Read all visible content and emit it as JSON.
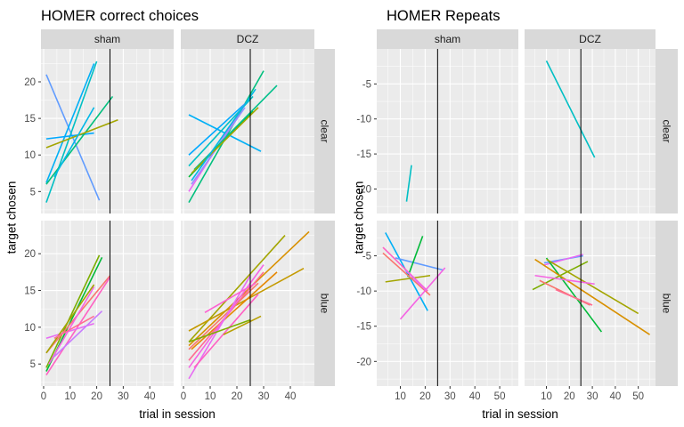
{
  "chart_data": [
    {
      "type": "line",
      "title": "HOMER correct choices",
      "xlabel": "trial in session",
      "ylabel": "target chosen",
      "facet_cols": [
        "sham",
        "DCZ"
      ],
      "facet_rows": [
        "clear",
        "blue"
      ],
      "xlim": [
        -1,
        49
      ],
      "x_ticks": [
        0,
        10,
        20,
        30,
        40
      ],
      "ylim": [
        2,
        24.5
      ],
      "y_ticks": [
        5,
        10,
        15,
        20
      ],
      "vline_x": 25,
      "grid": true,
      "legend": "none",
      "panels": [
        {
          "col": "sham",
          "row": "clear",
          "segments": [
            {
              "color": "#619cff",
              "x": [
                1,
                21
              ],
              "y": [
                21,
                3.8
              ]
            },
            {
              "color": "#00b0f6",
              "x": [
                1,
                19
              ],
              "y": [
                6.2,
                22.5
              ]
            },
            {
              "color": "#00bfc4",
              "x": [
                1,
                20
              ],
              "y": [
                3.5,
                22.8
              ]
            },
            {
              "color": "#00a9ff",
              "x": [
                1,
                19
              ],
              "y": [
                12.2,
                13
              ]
            },
            {
              "color": "#00bf7d",
              "x": [
                1,
                26
              ],
              "y": [
                6,
                18
              ]
            },
            {
              "color": "#a3a500",
              "x": [
                1,
                28
              ],
              "y": [
                11,
                14.8
              ]
            },
            {
              "color": "#00b8e7",
              "x": [
                4,
                19
              ],
              "y": [
                7,
                16.5
              ]
            }
          ]
        },
        {
          "col": "DCZ",
          "row": "clear",
          "segments": [
            {
              "color": "#00b0f6",
              "x": [
                2,
                29
              ],
              "y": [
                15.5,
                10.5
              ]
            },
            {
              "color": "#00bf7d",
              "x": [
                2,
                30
              ],
              "y": [
                3.5,
                21.5
              ]
            },
            {
              "color": "#00bfc4",
              "x": [
                2,
                26
              ],
              "y": [
                8.5,
                18
              ]
            },
            {
              "color": "#00a9ff",
              "x": [
                2,
                23
              ],
              "y": [
                10,
                17
              ]
            },
            {
              "color": "#00ba38",
              "x": [
                2,
                26
              ],
              "y": [
                7,
                16
              ]
            },
            {
              "color": "#e76bf3",
              "x": [
                2,
                23
              ],
              "y": [
                5,
                17
              ]
            },
            {
              "color": "#9590ff",
              "x": [
                3,
                23
              ],
              "y": [
                6,
                16.5
              ]
            },
            {
              "color": "#00c08b",
              "x": [
                4,
                35
              ],
              "y": [
                8,
                19.5
              ]
            },
            {
              "color": "#a3a500",
              "x": [
                3,
                28
              ],
              "y": [
                7.5,
                16.5
              ]
            },
            {
              "color": "#00b8e7",
              "x": [
                3,
                27
              ],
              "y": [
                6.5,
                19
              ]
            }
          ]
        },
        {
          "col": "sham",
          "row": "blue",
          "segments": [
            {
              "color": "#00ba38",
              "x": [
                1,
                22
              ],
              "y": [
                4,
                19.5
              ]
            },
            {
              "color": "#7cae00",
              "x": [
                1,
                21
              ],
              "y": [
                4.5,
                19.8
              ]
            },
            {
              "color": "#f8766d",
              "x": [
                1,
                25
              ],
              "y": [
                6.5,
                17
              ]
            },
            {
              "color": "#ff61c3",
              "x": [
                1,
                25
              ],
              "y": [
                3.5,
                16.8
              ]
            },
            {
              "color": "#e76bf3",
              "x": [
                1,
                19
              ],
              "y": [
                8.5,
                10.5
              ]
            },
            {
              "color": "#f564e3",
              "x": [
                2,
                19
              ],
              "y": [
                5,
                15.5
              ]
            },
            {
              "color": "#c77cff",
              "x": [
                4,
                22
              ],
              "y": [
                6,
                12.2
              ]
            },
            {
              "color": "#a3a500",
              "x": [
                1,
                19
              ],
              "y": [
                6.5,
                15.8
              ]
            },
            {
              "color": "#ff6c91",
              "x": [
                4,
                19
              ],
              "y": [
                8.5,
                11.5
              ]
            }
          ]
        },
        {
          "col": "DCZ",
          "row": "blue",
          "segments": [
            {
              "color": "#d89000",
              "x": [
                2,
                47
              ],
              "y": [
                7.5,
                23
              ]
            },
            {
              "color": "#a3a500",
              "x": [
                2,
                38
              ],
              "y": [
                8,
                22.5
              ]
            },
            {
              "color": "#c49a00",
              "x": [
                2,
                45
              ],
              "y": [
                9.5,
                18
              ]
            },
            {
              "color": "#e58700",
              "x": [
                3,
                35
              ],
              "y": [
                7,
                17.5
              ]
            },
            {
              "color": "#ff6c91",
              "x": [
                2,
                30
              ],
              "y": [
                5.5,
                17.5
              ]
            },
            {
              "color": "#f8766d",
              "x": [
                2,
                28
              ],
              "y": [
                7,
                16
              ]
            },
            {
              "color": "#f564e3",
              "x": [
                2,
                30
              ],
              "y": [
                4.5,
                18.5
              ]
            },
            {
              "color": "#e76bf3",
              "x": [
                2,
                25
              ],
              "y": [
                3,
                17
              ]
            },
            {
              "color": "#ff61c3",
              "x": [
                4,
                28
              ],
              "y": [
                4.5,
                14.5
              ]
            },
            {
              "color": "#7cae00",
              "x": [
                2,
                25
              ],
              "y": [
                8,
                11
              ]
            },
            {
              "color": "#b79f00",
              "x": [
                15,
                29
              ],
              "y": [
                9,
                11.5
              ]
            },
            {
              "color": "#fd61d1",
              "x": [
                8,
                27
              ],
              "y": [
                12,
                16
              ]
            }
          ]
        }
      ]
    },
    {
      "type": "line",
      "title": "HOMER Repeats",
      "xlabel": "trial in session",
      "ylabel": "target chosen",
      "facet_cols": [
        "sham",
        "DCZ"
      ],
      "facet_rows": [
        "clear",
        "blue"
      ],
      "xlim": [
        0.5,
        57.5
      ],
      "x_ticks": [
        10,
        20,
        30,
        40,
        50
      ],
      "ylim": [
        -23.5,
        0
      ],
      "y_ticks": [
        -20,
        -15,
        -10,
        -5
      ],
      "vline_x": 25,
      "grid": true,
      "legend": "none",
      "panels": [
        {
          "col": "sham",
          "row": "clear",
          "segments": [
            {
              "color": "#00bfc4",
              "x": [
                12.5,
                14.5
              ],
              "y": [
                -21.8,
                -16.6
              ]
            }
          ]
        },
        {
          "col": "DCZ",
          "row": "clear",
          "segments": [
            {
              "color": "#00bfc4",
              "x": [
                10,
                31
              ],
              "y": [
                -1.7,
                -15.5
              ]
            }
          ]
        },
        {
          "col": "sham",
          "row": "blue",
          "segments": [
            {
              "color": "#00b0f6",
              "x": [
                4,
                21
              ],
              "y": [
                -1.7,
                -12.8
              ]
            },
            {
              "color": "#619cff",
              "x": [
                8,
                27
              ],
              "y": [
                -5.3,
                -7.0
              ]
            },
            {
              "color": "#00ba38",
              "x": [
                13,
                19
              ],
              "y": [
                -8.0,
                -2.2
              ]
            },
            {
              "color": "#a3a500",
              "x": [
                4,
                22
              ],
              "y": [
                -8.7,
                -7.8
              ]
            },
            {
              "color": "#f8766d",
              "x": [
                3,
                22
              ],
              "y": [
                -4.6,
                -10.6
              ]
            },
            {
              "color": "#ff61c3",
              "x": [
                3,
                21
              ],
              "y": [
                -3.8,
                -10.0
              ]
            },
            {
              "color": "#f564e3",
              "x": [
                10,
                28
              ],
              "y": [
                -14.0,
                -6.7
              ]
            },
            {
              "color": "#e76bf3",
              "x": [
                12,
                20
              ],
              "y": [
                -7.0,
                -9.8
              ]
            }
          ]
        },
        {
          "col": "DCZ",
          "row": "blue",
          "segments": [
            {
              "color": "#619cff",
              "x": [
                9,
                26
              ],
              "y": [
                -6.0,
                -5.0
              ]
            },
            {
              "color": "#e76bf3",
              "x": [
                9,
                26
              ],
              "y": [
                -6.3,
                -4.8
              ]
            },
            {
              "color": "#7cae00",
              "x": [
                4,
                28
              ],
              "y": [
                -9.8,
                -5.8
              ]
            },
            {
              "color": "#00ba38",
              "x": [
                10,
                34
              ],
              "y": [
                -5.3,
                -15.8
              ]
            },
            {
              "color": "#d89000",
              "x": [
                5,
                55
              ],
              "y": [
                -5.5,
                -16.2
              ]
            },
            {
              "color": "#a3a500",
              "x": [
                10,
                50
              ],
              "y": [
                -5.5,
                -13.2
              ]
            },
            {
              "color": "#f564e3",
              "x": [
                5,
                31
              ],
              "y": [
                -7.8,
                -9.0
              ]
            },
            {
              "color": "#f8766d",
              "x": [
                7,
                29
              ],
              "y": [
                -8.5,
                -12.0
              ]
            },
            {
              "color": "#ff6c91",
              "x": [
                14,
                30
              ],
              "y": [
                -9.8,
                -12.0
              ]
            }
          ]
        }
      ]
    }
  ]
}
